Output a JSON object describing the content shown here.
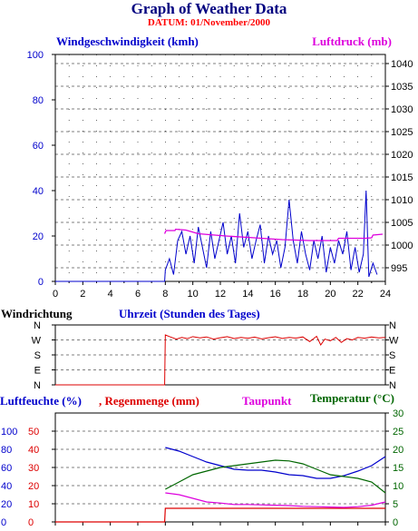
{
  "title": "Graph of Weather Data",
  "subtitle": "DATUM: 01/November/2000",
  "colors": {
    "wind": "#0000cc",
    "pressure": "#dd00dd",
    "direction": "#dd0000",
    "humidity": "#0000cc",
    "rain": "#dd0000",
    "dewpoint": "#dd00dd",
    "temperature": "#006600",
    "title": "#000080"
  },
  "chart_data": [
    {
      "type": "line",
      "title": "Windgeschwindigkeit (kmh)",
      "right_title": "Luftdruck (mb)",
      "xlabel": "Uhrzeit (Stunden des Tages)",
      "xlim": [
        0,
        24
      ],
      "ylim": [
        0,
        100
      ],
      "y2lim": [
        992,
        1042
      ],
      "x_ticks": [
        "0",
        "2",
        "4",
        "6",
        "8",
        "10",
        "12",
        "14",
        "16",
        "18",
        "20",
        "22",
        "24"
      ],
      "y_ticks": [
        "0",
        "20",
        "40",
        "60",
        "80",
        "100"
      ],
      "y2_ticks": [
        "995",
        "1000",
        "1005",
        "1010",
        "1015",
        "1020",
        "1025",
        "1030",
        "1035",
        "1040"
      ],
      "grid": true,
      "series": [
        {
          "name": "Windgeschwindigkeit (kmh)",
          "axis": "left",
          "x": [
            0,
            7.95,
            8.0,
            8.3,
            8.6,
            8.9,
            9.2,
            9.5,
            9.8,
            10.1,
            10.4,
            10.7,
            11.0,
            11.3,
            11.6,
            11.9,
            12.2,
            12.5,
            12.8,
            13.1,
            13.4,
            13.7,
            14.0,
            14.3,
            14.6,
            14.9,
            15.2,
            15.5,
            15.8,
            16.1,
            16.4,
            16.7,
            17.0,
            17.3,
            17.6,
            17.9,
            18.2,
            18.5,
            18.8,
            19.1,
            19.4,
            19.7,
            20.0,
            20.3,
            20.6,
            20.9,
            21.2,
            21.5,
            21.8,
            22.1,
            22.4,
            22.6,
            22.8,
            23.1,
            23.4
          ],
          "y": [
            0,
            0,
            5,
            10,
            3,
            18,
            22,
            12,
            20,
            8,
            24,
            15,
            6,
            22,
            10,
            18,
            26,
            12,
            20,
            8,
            30,
            15,
            22,
            10,
            18,
            25,
            8,
            20,
            12,
            18,
            6,
            15,
            36,
            18,
            8,
            22,
            12,
            5,
            18,
            10,
            20,
            4,
            15,
            8,
            18,
            12,
            22,
            5,
            15,
            4,
            12,
            40,
            2,
            8,
            3
          ]
        },
        {
          "name": "Luftdruck (mb)",
          "axis": "right",
          "x": [
            7.95,
            8.05,
            8.7,
            8.75,
            9.5,
            10.4,
            12.4,
            14.5,
            16.5,
            18.5,
            20.5,
            20.6,
            22.5,
            23.0,
            23.1,
            23.8
          ],
          "y": [
            1002.5,
            1003.2,
            1003.2,
            1003.5,
            1003.3,
            1002.5,
            1002.0,
            1001.6,
            1001.2,
            1001.0,
            1001.0,
            1001.5,
            1001.5,
            1001.6,
            1002.2,
            1002.4
          ]
        }
      ]
    },
    {
      "type": "line",
      "title": "Windrichtung",
      "direction_ticks": [
        "N",
        "W",
        "S",
        "E",
        "N"
      ],
      "series": [
        {
          "name": "Windrichtung",
          "x": [
            0,
            7.95,
            8.0,
            8.3,
            8.8,
            9.2,
            9.6,
            10.0,
            10.5,
            11.0,
            11.5,
            12.0,
            12.5,
            13.0,
            13.5,
            14.0,
            14.5,
            15.0,
            15.5,
            16.0,
            16.5,
            17.0,
            17.5,
            18.0,
            18.5,
            19.0,
            19.3,
            19.6,
            20.0,
            20.4,
            20.8,
            21.2,
            21.6,
            22.0,
            22.5,
            23.0,
            23.5,
            24.0
          ],
          "y": [
            0,
            0,
            300,
            290,
            275,
            285,
            278,
            290,
            282,
            288,
            275,
            283,
            290,
            278,
            285,
            280,
            287,
            276,
            283,
            289,
            279,
            285,
            281,
            288,
            260,
            292,
            240,
            275,
            265,
            285,
            255,
            278,
            270,
            285,
            280,
            288,
            282,
            285
          ]
        }
      ]
    },
    {
      "type": "line",
      "title": "Luftfeuchte (%)",
      "labels": [
        "Luftfeuchte (%)",
        "Regenmenge (mm)",
        "Taupunkt",
        "Temperatur (°C)"
      ],
      "humidity_ticks": [
        "0",
        "20",
        "40",
        "60",
        "80",
        "100"
      ],
      "rain_ticks": [
        "0",
        "10",
        "20",
        "30",
        "40",
        "50"
      ],
      "temp_ticks": [
        "0",
        "5",
        "10",
        "15",
        "20",
        "25",
        "30"
      ],
      "xlim": [
        0,
        24
      ],
      "series": [
        {
          "name": "Luftfeuchte (%)",
          "axis": "humidity",
          "x": [
            8,
            9,
            10,
            11,
            12,
            13,
            14,
            15,
            16,
            17,
            18,
            19,
            20,
            21,
            22,
            23,
            24
          ],
          "y": [
            82,
            78,
            72,
            66,
            62,
            58,
            57,
            57,
            55,
            52,
            51,
            48,
            48,
            51,
            56,
            62,
            72
          ]
        },
        {
          "name": "Regenmenge (mm)",
          "axis": "rain",
          "x": [
            0,
            7.95,
            8.0,
            24
          ],
          "y": [
            0,
            0,
            7.5,
            7.5
          ]
        },
        {
          "name": "Temperatur (°C)",
          "axis": "temp",
          "x": [
            8,
            9,
            10,
            11,
            12,
            13,
            14,
            15,
            16,
            17,
            18,
            19,
            20,
            21,
            22,
            23,
            24
          ],
          "y": [
            9,
            11,
            13,
            14,
            15,
            15.5,
            16,
            16.5,
            17,
            16.8,
            16,
            14.5,
            13,
            12.5,
            12,
            11,
            8
          ]
        },
        {
          "name": "Taupunkt",
          "axis": "temp",
          "x": [
            8,
            9,
            10,
            11,
            12,
            13,
            14,
            15,
            16,
            17,
            18,
            19,
            20,
            21,
            22,
            23,
            24
          ],
          "y": [
            8,
            7.5,
            6.5,
            5.5,
            5.2,
            4.8,
            4.8,
            4.7,
            4.6,
            4.5,
            4.3,
            4.2,
            4.1,
            4.0,
            4.2,
            4.6,
            5.5
          ]
        }
      ]
    }
  ]
}
